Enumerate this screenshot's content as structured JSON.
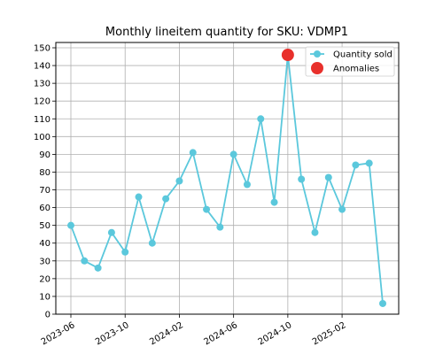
{
  "chart_data": {
    "type": "line",
    "title": "Monthly lineitem quantity for SKU: VDMP1",
    "xlabel": "",
    "ylabel": "",
    "x": [
      "2023-06",
      "2023-07",
      "2023-08",
      "2023-09",
      "2023-10",
      "2023-11",
      "2023-12",
      "2024-01",
      "2024-02",
      "2024-03",
      "2024-04",
      "2024-05",
      "2024-06",
      "2024-07",
      "2024-08",
      "2024-09",
      "2024-10",
      "2024-11",
      "2024-12",
      "2025-01",
      "2025-02",
      "2025-03",
      "2025-04",
      "2025-05"
    ],
    "x_ticks": [
      "2023-06",
      "2023-10",
      "2024-02",
      "2024-06",
      "2024-10",
      "2025-02"
    ],
    "ylim": [
      0,
      150
    ],
    "y_ticks": [
      0,
      10,
      20,
      30,
      40,
      50,
      60,
      70,
      80,
      90,
      100,
      110,
      120,
      130,
      140,
      150
    ],
    "grid": true,
    "legend_position": "top-right",
    "series": [
      {
        "name": "Quantity sold",
        "color": "#5bc8dc",
        "values": [
          50,
          30,
          26,
          46,
          35,
          66,
          40,
          65,
          75,
          91,
          59,
          49,
          90,
          73,
          110,
          63,
          146,
          76,
          46,
          77,
          59,
          84,
          85,
          6
        ]
      },
      {
        "name": "Anomalies",
        "color": "#e8302c",
        "points": [
          {
            "x": "2024-10",
            "y": 146
          }
        ]
      }
    ]
  }
}
